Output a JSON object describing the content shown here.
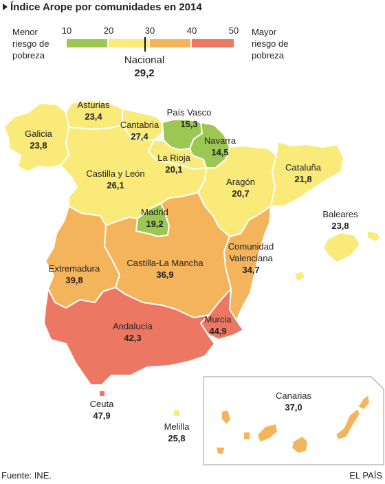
{
  "title": "Índice Arope por comunidades en 2014",
  "legend": {
    "left_label": "Menor\nriesgo de\npobreza",
    "right_label": "Mayor\nriesgo de\npobreza",
    "ticks": [
      "10",
      "20",
      "30",
      "40",
      "50"
    ],
    "bins": [
      {
        "from": 10,
        "to": 20,
        "color": "#9dc753"
      },
      {
        "from": 20,
        "to": 30,
        "color": "#f9ea79"
      },
      {
        "from": 30,
        "to": 40,
        "color": "#f4b45c"
      },
      {
        "from": 40,
        "to": 50,
        "color": "#ec7863"
      }
    ]
  },
  "national": {
    "label": "Nacional",
    "value": "29,2"
  },
  "regions": [
    {
      "name": "Galicia",
      "value": "23,8",
      "color": "#f9ea79"
    },
    {
      "name": "Asturias",
      "value": "23,4",
      "color": "#f9ea79"
    },
    {
      "name": "Cantabria",
      "value": "27,4",
      "color": "#f9ea79"
    },
    {
      "name": "País Vasco",
      "value": "15,3",
      "color": "#9dc753"
    },
    {
      "name": "Navarra",
      "value": "14,5",
      "color": "#9dc753"
    },
    {
      "name": "La Rioja",
      "value": "20,1",
      "color": "#f9ea79"
    },
    {
      "name": "Castilla y León",
      "value": "26,1",
      "color": "#f9ea79"
    },
    {
      "name": "Aragón",
      "value": "20,7",
      "color": "#f9ea79"
    },
    {
      "name": "Cataluña",
      "value": "21,8",
      "color": "#f9ea79"
    },
    {
      "name": "Baleares",
      "value": "23,8",
      "color": "#f9ea79"
    },
    {
      "name": "Madrid",
      "value": "19,2",
      "color": "#9dc753"
    },
    {
      "name": "Extremadura",
      "value": "39,8",
      "color": "#f4b45c"
    },
    {
      "name": "Castilla-La Mancha",
      "value": "36,9",
      "color": "#f4b45c"
    },
    {
      "name": "Comunidad\nValenciana",
      "value": "34,7",
      "color": "#f4b45c"
    },
    {
      "name": "Murcia",
      "value": "44,9",
      "color": "#ec7863"
    },
    {
      "name": "Andalucía",
      "value": "42,3",
      "color": "#ec7863"
    },
    {
      "name": "Ceuta",
      "value": "47,9",
      "color": "#ec7863"
    },
    {
      "name": "Melilla",
      "value": "25,8",
      "color": "#f9ea79"
    },
    {
      "name": "Canarias",
      "value": "37,0",
      "color": "#f4b45c"
    }
  ],
  "source": "Fuente: INE.",
  "credit": "EL PAÍS"
}
